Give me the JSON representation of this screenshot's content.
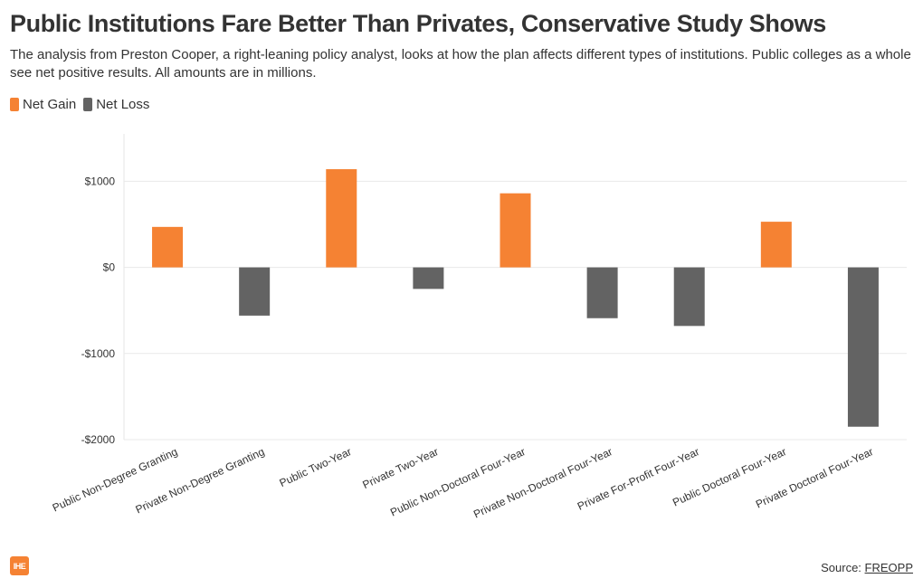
{
  "title": "Public Institutions Fare Better Than Privates, Conservative Study Shows",
  "subtitle": "The analysis from Preston Cooper, a right-leaning policy analyst, looks at how the plan affects different types of institutions. Public colleges as a whole see net positive results. All amounts are in millions.",
  "legend": [
    {
      "label": "Net Gain",
      "color": "#f58233"
    },
    {
      "label": "Net Loss",
      "color": "#636363"
    }
  ],
  "source": {
    "prefix": "Source: ",
    "link_text": "FREOPP"
  },
  "logo_text": "IHE",
  "chart_data": {
    "type": "bar",
    "title": "Public Institutions Fare Better Than Privates, Conservative Study Shows",
    "xlabel": "",
    "ylabel": "",
    "ylim": [
      -2000,
      1550
    ],
    "yticks": [
      1000,
      0,
      -1000,
      -2000
    ],
    "ytick_labels": [
      "$1000",
      "$0",
      "-$1000",
      "-$2000"
    ],
    "categories": [
      "Public Non-Degree Granting",
      "Private Non-Degree Granting",
      "Public Two-Year",
      "Private Two-Year",
      "Public Non-Doctoral Four-Year",
      "Private Non-Doctoral Four-Year",
      "Private For-Profit Four-Year",
      "Public Doctoral Four-Year",
      "Private Doctoral Four-Year"
    ],
    "series": [
      {
        "name": "Net Gain",
        "color": "#f58233",
        "values": [
          470,
          null,
          1140,
          null,
          860,
          null,
          null,
          530,
          null
        ]
      },
      {
        "name": "Net Loss",
        "color": "#636363",
        "values": [
          null,
          -560,
          null,
          -250,
          null,
          -590,
          -680,
          null,
          -1850
        ]
      }
    ],
    "grid": true,
    "legend_position": "top-left"
  }
}
